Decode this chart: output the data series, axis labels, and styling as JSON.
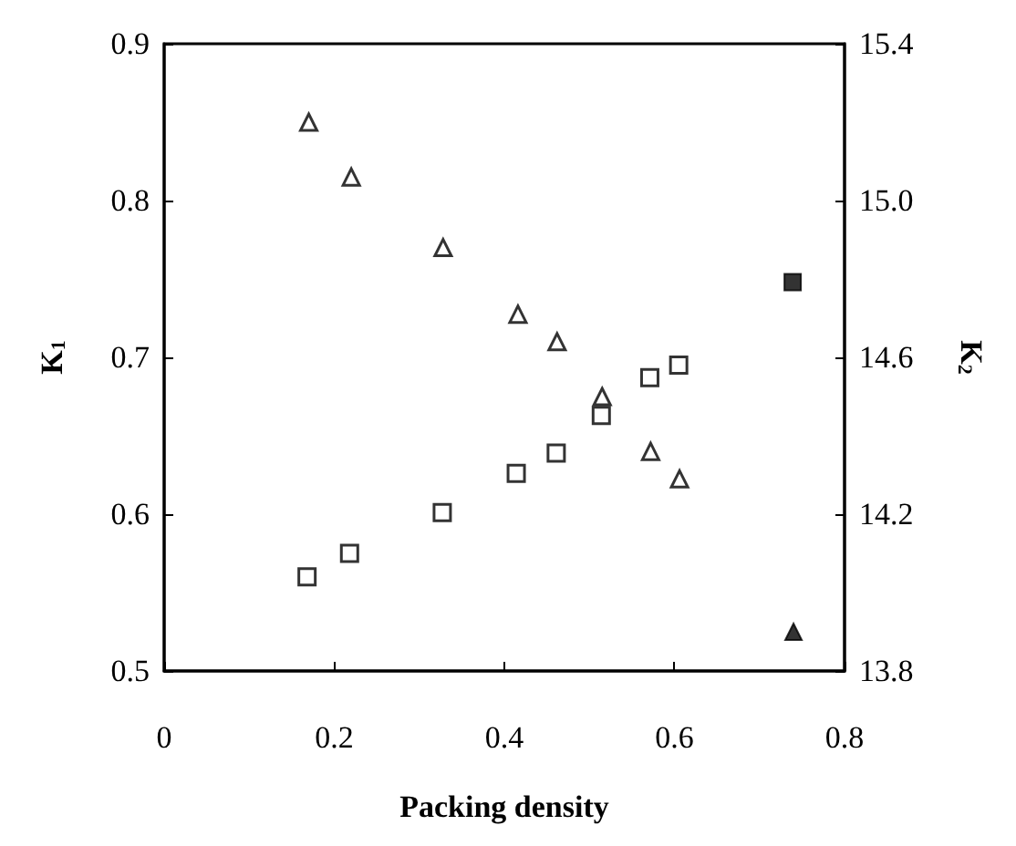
{
  "chart_data": {
    "type": "scatter",
    "xlabel": "Packing density",
    "ylabel": "K$_{1}$",
    "y2label": "K$_{2}$",
    "xlim": [
      0,
      0.8
    ],
    "xticks": [
      0,
      0.2,
      0.4,
      0.6,
      0.8
    ],
    "ylim": [
      0.5,
      0.9
    ],
    "yticks": [
      0.5,
      0.6,
      0.7,
      0.8,
      0.9
    ],
    "y2lim": [
      13.8,
      15.4
    ],
    "y2ticks": [
      13.8,
      14.2,
      14.6,
      {
        "value": 15,
        "label": "15.0"
      },
      15.4
    ],
    "grid": false,
    "series": [
      {
        "marker": "square",
        "x": [
          0.168,
          0.218,
          0.327,
          0.414,
          0.461,
          0.514,
          0.571,
          0.605
        ],
        "values": [
          0.56,
          0.575,
          0.601,
          0.626,
          0.639,
          0.663,
          0.687,
          0.695
        ]
      },
      {
        "marker": "square",
        "color": "#000000",
        "x": [
          0.739
        ],
        "values": [
          0.748
        ]
      },
      {
        "marker": "triangle",
        "axis": "y2",
        "x": [
          0.17,
          0.22,
          0.328,
          0.416,
          0.462,
          0.515,
          0.572,
          0.606
        ],
        "values": [
          15.2,
          15.06,
          14.88,
          14.71,
          14.64,
          14.5,
          14.36,
          14.29
        ]
      },
      {
        "marker": "triangle",
        "axis": "y2",
        "color": "#000000",
        "x": [
          0.74
        ],
        "values": [
          13.9
        ]
      }
    ]
  }
}
